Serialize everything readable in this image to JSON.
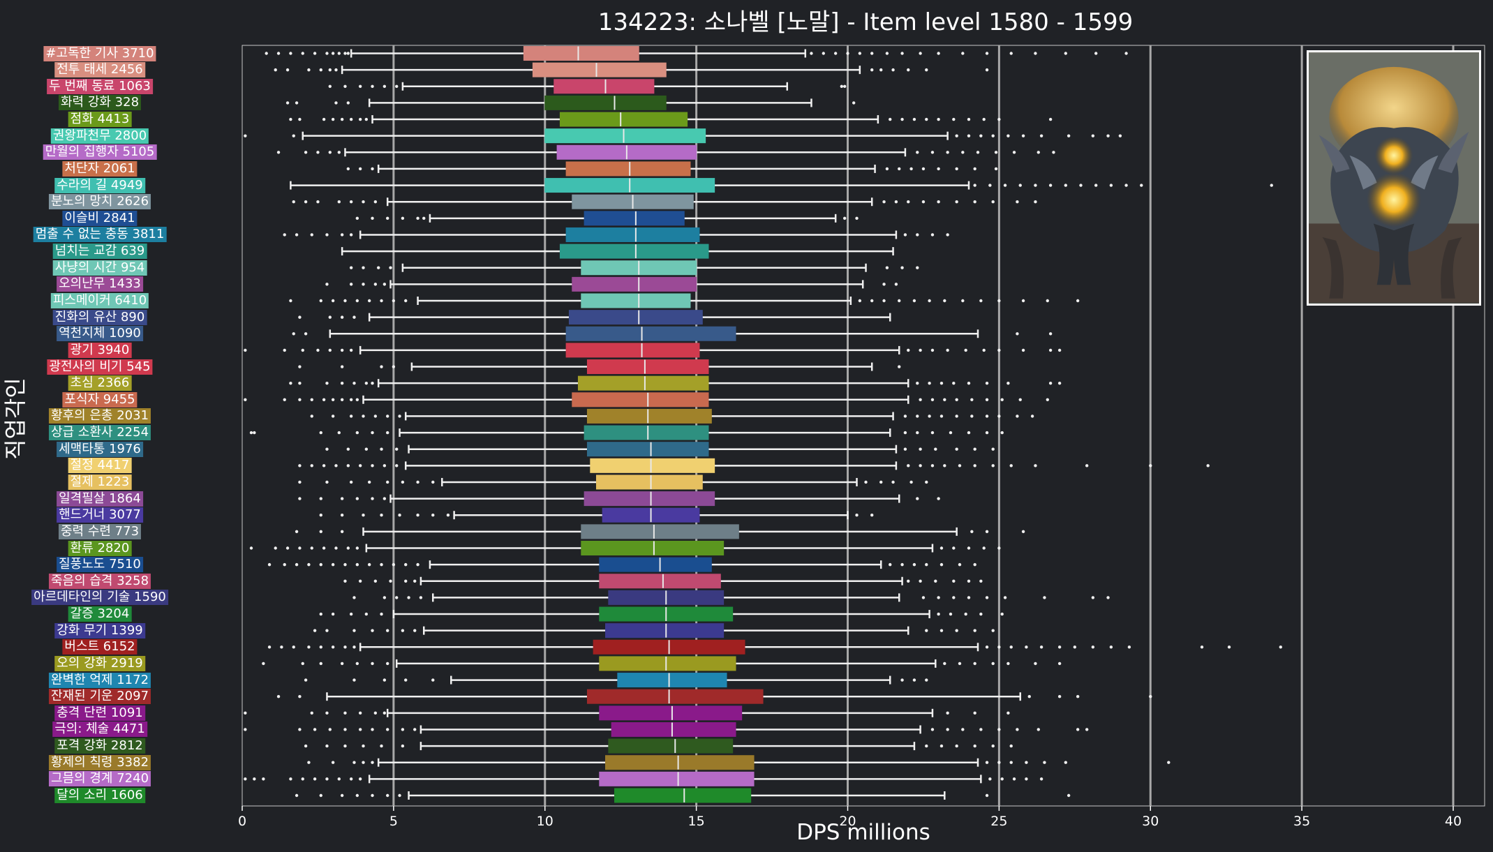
{
  "chart_data": {
    "type": "boxplot",
    "title": "134223: 소나벨 [노말] - Item level 1580 - 1599",
    "xlabel": "DPS millions",
    "ylabel": "직업각인",
    "xlim": [
      0,
      40
    ],
    "x_ticks": [
      0,
      5,
      10,
      15,
      20,
      25,
      30,
      35,
      40
    ],
    "grid": "vertical lines at 5, 10, 15, 20, 25, 30, 35, 40",
    "orientation": "horizontal",
    "background": "#202226",
    "categories": [
      {
        "label": "#고독한 기사 3710",
        "color": "#d4837b",
        "q1": 9.3,
        "median": 11.1,
        "q3": 13.1,
        "wmin": 3.6,
        "wmax": 18.6,
        "outliers": [
          0.8,
          1.2,
          1.6,
          2.0,
          2.4,
          2.8,
          3.0,
          3.2,
          3.4,
          3.5,
          18.8,
          19.2,
          19.6,
          20.0,
          20.4,
          20.8,
          21.3,
          21.8,
          22.4,
          23.0,
          23.8,
          24.6,
          25.4,
          26.2,
          27.2,
          28.2,
          29.2
        ]
      },
      {
        "label": "전투 태세 2456",
        "color": "#d98f80",
        "q1": 9.6,
        "median": 11.7,
        "q3": 14.0,
        "wmin": 3.3,
        "wmax": 20.4,
        "outliers": [
          1.1,
          1.5,
          2.2,
          2.6,
          2.9,
          3.1,
          20.8,
          21.1,
          21.5,
          22.0,
          22.6,
          24.6
        ]
      },
      {
        "label": "두 번째 동료 1063",
        "color": "#c9456b",
        "q1": 10.3,
        "median": 12.0,
        "q3": 13.6,
        "wmin": 5.3,
        "wmax": 18.0,
        "outliers": [
          2.9,
          3.4,
          3.9,
          4.3,
          4.7,
          5.1,
          19.8,
          19.9
        ]
      },
      {
        "label": "화력 강화 328",
        "color": "#2c5a1c",
        "q1": 10.0,
        "median": 12.3,
        "q3": 14.0,
        "wmin": 4.2,
        "wmax": 18.8,
        "outliers": [
          1.5,
          1.8,
          3.1,
          3.5,
          20.2
        ]
      },
      {
        "label": "점화 4413",
        "color": "#6b9a1a",
        "q1": 10.5,
        "median": 12.5,
        "q3": 14.7,
        "wmin": 4.3,
        "wmax": 21.0,
        "outliers": [
          1.6,
          1.9,
          2.7,
          3.0,
          3.3,
          3.6,
          3.9,
          4.1,
          21.4,
          21.8,
          22.2,
          22.6,
          23.0,
          23.5,
          24.0,
          24.5,
          25.0,
          26.7
        ]
      },
      {
        "label": "권왕파천무 2800",
        "color": "#48c9b0",
        "q1": 10.0,
        "median": 12.6,
        "q3": 15.3,
        "wmin": 2.0,
        "wmax": 23.3,
        "outliers": [
          0.1,
          1.7,
          23.6,
          24.0,
          24.4,
          24.8,
          25.3,
          25.8,
          26.4,
          27.3,
          28.1,
          28.6,
          29.0
        ]
      },
      {
        "label": "만월의 집행자 5105",
        "color": "#b56bc7",
        "q1": 10.4,
        "median": 12.7,
        "q3": 15.0,
        "wmin": 3.4,
        "wmax": 21.9,
        "outliers": [
          1.2,
          2.1,
          2.5,
          2.9,
          3.2,
          22.3,
          22.8,
          23.3,
          23.8,
          24.3,
          24.9,
          25.5,
          26.3,
          26.8
        ]
      },
      {
        "label": "처단자 2061",
        "color": "#c8704a",
        "q1": 10.7,
        "median": 12.8,
        "q3": 14.8,
        "wmin": 4.5,
        "wmax": 20.9,
        "outliers": [
          3.5,
          3.9,
          4.3,
          21.3,
          21.7,
          22.1,
          22.5,
          23.0,
          23.6,
          24.2,
          24.9
        ]
      },
      {
        "label": "수라의 길 4949",
        "color": "#40bfb0",
        "q1": 10.0,
        "median": 12.8,
        "q3": 15.6,
        "wmin": 1.6,
        "wmax": 24.0,
        "outliers": [
          24.2,
          24.7,
          25.2,
          25.7,
          26.2,
          26.7,
          27.2,
          27.7,
          28.2,
          28.7,
          29.2,
          29.7,
          34.0
        ]
      },
      {
        "label": "분노의 망치 2626",
        "color": "#7f959f",
        "q1": 10.9,
        "median": 12.9,
        "q3": 14.9,
        "wmin": 4.8,
        "wmax": 20.8,
        "outliers": [
          1.7,
          2.1,
          2.5,
          3.2,
          3.6,
          4.0,
          4.4,
          21.2,
          21.6,
          22.0,
          22.5,
          23.0,
          23.6,
          24.2,
          24.8,
          25.6,
          26.2
        ]
      },
      {
        "label": "이슬비 2841",
        "color": "#1f4e93",
        "q1": 11.3,
        "median": 13.0,
        "q3": 14.6,
        "wmin": 6.2,
        "wmax": 19.6,
        "outliers": [
          3.8,
          4.3,
          4.8,
          5.3,
          5.8,
          6.0,
          19.9,
          20.3
        ]
      },
      {
        "label": "멈출 수 없는 충동 3811",
        "color": "#1d7fa0",
        "q1": 10.7,
        "median": 13.0,
        "q3": 15.1,
        "wmin": 3.9,
        "wmax": 21.6,
        "outliers": [
          1.4,
          1.8,
          2.3,
          2.8,
          3.3,
          3.6,
          21.9,
          22.3,
          22.8,
          23.3
        ]
      },
      {
        "label": "넘치는 교감 639",
        "color": "#2a9a8a",
        "q1": 10.5,
        "median": 13.0,
        "q3": 15.4,
        "wmin": 3.3,
        "wmax": 21.5,
        "outliers": []
      },
      {
        "label": "사냥의 시간 954",
        "color": "#6fc7b5",
        "q1": 11.2,
        "median": 13.1,
        "q3": 15.0,
        "wmin": 5.3,
        "wmax": 20.6,
        "outliers": [
          3.6,
          4.0,
          4.5,
          4.9,
          21.3,
          21.8,
          22.3
        ]
      },
      {
        "label": "오의난무 1433",
        "color": "#9b4a96",
        "q1": 10.9,
        "median": 13.1,
        "q3": 15.0,
        "wmin": 4.9,
        "wmax": 20.5,
        "outliers": [
          2.8,
          3.6,
          4.0,
          4.4,
          4.7,
          21.2,
          21.6
        ]
      },
      {
        "label": "피스메이커 6410",
        "color": "#6fc7b5",
        "q1": 11.2,
        "median": 13.1,
        "q3": 14.8,
        "wmin": 5.8,
        "wmax": 20.1,
        "outliers": [
          1.6,
          2.6,
          3.0,
          3.4,
          3.8,
          4.2,
          4.6,
          5.0,
          5.4,
          20.4,
          20.8,
          21.2,
          21.7,
          22.2,
          22.7,
          23.2,
          23.8,
          24.4,
          25.0,
          25.8,
          26.6,
          27.6
        ]
      },
      {
        "label": "진화의 유산 890",
        "color": "#3a4a8a",
        "q1": 10.8,
        "median": 13.1,
        "q3": 15.2,
        "wmin": 4.2,
        "wmax": 21.4,
        "outliers": [
          1.9,
          2.9,
          3.3,
          3.7
        ]
      },
      {
        "label": "역천지체 1090",
        "color": "#385a8a",
        "q1": 10.7,
        "median": 13.2,
        "q3": 16.3,
        "wmin": 2.9,
        "wmax": 24.3,
        "outliers": [
          1.7,
          2.1,
          25.6,
          26.7
        ]
      },
      {
        "label": "광기 3940",
        "color": "#d03a4e",
        "q1": 10.7,
        "median": 13.2,
        "q3": 15.1,
        "wmin": 3.9,
        "wmax": 21.7,
        "outliers": [
          0.1,
          1.4,
          2.0,
          2.5,
          2.9,
          3.3,
          3.6,
          22.0,
          22.4,
          22.8,
          23.3,
          23.9,
          24.5,
          25.0,
          25.8,
          26.7,
          27.0
        ]
      },
      {
        "label": "광전사의 비기 545",
        "color": "#d03a4e",
        "q1": 11.4,
        "median": 13.3,
        "q3": 15.4,
        "wmin": 5.6,
        "wmax": 20.8,
        "outliers": [
          1.9,
          3.3,
          4.6,
          5.0,
          21.7
        ]
      },
      {
        "label": "초심 2366",
        "color": "#a4a028",
        "q1": 11.1,
        "median": 13.3,
        "q3": 15.4,
        "wmin": 4.5,
        "wmax": 22.0,
        "outliers": [
          1.6,
          1.9,
          2.8,
          3.3,
          3.7,
          4.1,
          4.3,
          22.3,
          22.7,
          23.1,
          23.5,
          24.0,
          24.6,
          25.3,
          26.7,
          27.0
        ]
      },
      {
        "label": "포식자 9455",
        "color": "#c96a4f",
        "q1": 10.9,
        "median": 13.4,
        "q3": 15.4,
        "wmin": 4.0,
        "wmax": 22.0,
        "outliers": [
          0.1,
          1.4,
          1.9,
          2.3,
          2.7,
          3.0,
          3.3,
          3.6,
          3.8,
          22.4,
          22.8,
          23.2,
          23.6,
          24.1,
          24.6,
          25.1,
          25.7,
          26.6
        ]
      },
      {
        "label": "황후의 은총 2031",
        "color": "#a0822a",
        "q1": 11.4,
        "median": 13.4,
        "q3": 15.5,
        "wmin": 5.4,
        "wmax": 21.5,
        "outliers": [
          2.3,
          3.0,
          3.6,
          4.0,
          4.4,
          4.8,
          5.2,
          21.9,
          22.3,
          22.7,
          23.1,
          23.6,
          24.1,
          24.6,
          25.0,
          25.6,
          26.1
        ]
      },
      {
        "label": "상급 소환사 2254",
        "color": "#2e9080",
        "q1": 11.3,
        "median": 13.4,
        "q3": 15.4,
        "wmin": 5.2,
        "wmax": 21.4,
        "outliers": [
          0.3,
          0.4,
          2.6,
          3.2,
          3.8,
          4.3,
          4.8,
          21.9,
          22.3,
          22.8,
          23.4,
          24.0,
          24.6,
          25.1
        ]
      },
      {
        "label": "세맥타통 1976",
        "color": "#2f6a8a",
        "q1": 11.4,
        "median": 13.5,
        "q3": 15.4,
        "wmin": 5.5,
        "wmax": 21.6,
        "outliers": [
          2.8,
          3.5,
          4.1,
          4.6,
          5.1,
          21.9,
          22.4,
          22.9,
          23.6,
          24.2,
          24.8
        ]
      },
      {
        "label": "절정 4417",
        "color": "#f0d070",
        "q1": 11.5,
        "median": 13.5,
        "q3": 15.6,
        "wmin": 5.4,
        "wmax": 21.6,
        "outliers": [
          1.9,
          2.3,
          2.7,
          3.1,
          3.5,
          3.9,
          4.3,
          4.7,
          5.1,
          22.0,
          22.4,
          22.8,
          23.2,
          23.7,
          24.2,
          24.8,
          25.4,
          26.2,
          27.9,
          30.0,
          31.9
        ]
      },
      {
        "label": "절제 1223",
        "color": "#e6c060",
        "q1": 11.7,
        "median": 13.5,
        "q3": 15.2,
        "wmin": 6.6,
        "wmax": 20.3,
        "outliers": [
          1.9,
          2.8,
          3.6,
          4.2,
          4.8,
          5.3,
          5.8,
          6.3,
          20.6,
          21.1,
          21.5,
          22.1,
          22.6
        ]
      },
      {
        "label": "일격필살 1864",
        "color": "#8c4a96",
        "q1": 11.3,
        "median": 13.5,
        "q3": 15.6,
        "wmin": 4.9,
        "wmax": 21.7,
        "outliers": [
          1.9,
          2.6,
          3.3,
          3.8,
          4.3,
          4.7,
          22.3,
          23.0
        ]
      },
      {
        "label": "핸드거너 3077",
        "color": "#4a3aa0",
        "q1": 11.9,
        "median": 13.5,
        "q3": 15.1,
        "wmin": 7.0,
        "wmax": 20.0,
        "outliers": [
          2.6,
          3.3,
          4.0,
          4.6,
          5.2,
          5.8,
          6.3,
          6.8,
          20.3,
          20.8
        ]
      },
      {
        "label": "중력 수련 773",
        "color": "#6e7f88",
        "q1": 11.2,
        "median": 13.6,
        "q3": 16.4,
        "wmin": 4.0,
        "wmax": 23.6,
        "outliers": [
          1.8,
          2.6,
          3.3,
          24.1,
          24.6,
          25.8
        ]
      },
      {
        "label": "환류 2820",
        "color": "#5b961f",
        "q1": 11.2,
        "median": 13.6,
        "q3": 15.9,
        "wmin": 4.1,
        "wmax": 22.8,
        "outliers": [
          0.3,
          1.1,
          1.5,
          1.9,
          2.3,
          2.7,
          3.1,
          3.5,
          3.8,
          23.1,
          23.5,
          24.0,
          24.5,
          25.0
        ]
      },
      {
        "label": "질풍노도 7510",
        "color": "#1a4e90",
        "q1": 11.8,
        "median": 13.8,
        "q3": 15.5,
        "wmin": 6.2,
        "wmax": 21.1,
        "outliers": [
          0.9,
          1.4,
          1.8,
          2.2,
          2.6,
          3.0,
          3.4,
          3.8,
          4.2,
          4.6,
          5.0,
          5.4,
          5.8,
          21.4,
          21.8,
          22.2,
          22.6,
          23.1,
          23.7,
          24.2
        ]
      },
      {
        "label": "죽음의 습격 3258",
        "color": "#c04a70",
        "q1": 11.8,
        "median": 13.9,
        "q3": 15.8,
        "wmin": 5.9,
        "wmax": 21.8,
        "outliers": [
          3.4,
          3.9,
          4.4,
          4.9,
          5.4,
          5.7,
          22.0,
          22.4,
          22.9,
          23.5,
          24.0,
          24.4
        ]
      },
      {
        "label": "아르데타인의 기술 1590",
        "color": "#3a3a80",
        "q1": 12.1,
        "median": 14.0,
        "q3": 15.9,
        "wmin": 6.3,
        "wmax": 21.7,
        "outliers": [
          3.7,
          4.7,
          5.1,
          5.5,
          5.9,
          22.5,
          23.0,
          23.5,
          24.0,
          24.6,
          25.2,
          26.5,
          28.1,
          28.6
        ]
      },
      {
        "label": "갈증 3204",
        "color": "#1f8a3a",
        "q1": 11.8,
        "median": 14.0,
        "q3": 16.2,
        "wmin": 5.0,
        "wmax": 22.7,
        "outliers": [
          2.6,
          3.0,
          3.6,
          4.1,
          4.6,
          23.0,
          23.4,
          23.9,
          24.4,
          25.1
        ]
      },
      {
        "label": "강화 무기 1399",
        "color": "#3c3a90",
        "q1": 12.0,
        "median": 14.0,
        "q3": 15.9,
        "wmin": 6.0,
        "wmax": 22.0,
        "outliers": [
          2.4,
          2.8,
          3.7,
          4.3,
          4.8,
          5.3,
          5.7,
          22.6,
          23.1,
          23.6,
          24.2,
          24.8
        ]
      },
      {
        "label": "버스트 6152",
        "color": "#a02020",
        "q1": 11.6,
        "median": 14.1,
        "q3": 16.6,
        "wmin": 3.9,
        "wmax": 24.3,
        "outliers": [
          0.9,
          1.3,
          1.7,
          2.2,
          2.6,
          3.0,
          3.4,
          3.7,
          24.6,
          25.0,
          25.4,
          25.9,
          26.4,
          27.0,
          27.5,
          28.1,
          28.7,
          29.3,
          31.7,
          32.6,
          34.3
        ]
      },
      {
        "label": "오의 강화 2919",
        "color": "#9a9a20",
        "q1": 11.8,
        "median": 14.0,
        "q3": 16.3,
        "wmin": 5.1,
        "wmax": 22.9,
        "outliers": [
          0.7,
          2.0,
          2.6,
          3.3,
          3.8,
          4.3,
          4.8,
          23.2,
          23.7,
          24.2,
          24.8,
          25.3,
          26.2,
          27.0
        ]
      },
      {
        "label": "완벽한 억제 1172",
        "color": "#1f86b0",
        "q1": 12.4,
        "median": 14.1,
        "q3": 16.0,
        "wmin": 6.9,
        "wmax": 21.4,
        "outliers": [
          2.1,
          3.7,
          4.7,
          5.4,
          6.3,
          21.8,
          22.2,
          22.6
        ]
      },
      {
        "label": "잔재된 기운 2097",
        "color": "#a02a2a",
        "q1": 11.4,
        "median": 14.1,
        "q3": 17.2,
        "wmin": 2.8,
        "wmax": 25.7,
        "outliers": [
          1.2,
          1.9,
          26.0,
          27.0,
          27.6,
          30.0
        ]
      },
      {
        "label": "충격 단련 1091",
        "color": "#8a1a8a",
        "q1": 11.8,
        "median": 14.2,
        "q3": 16.5,
        "wmin": 4.8,
        "wmax": 22.8,
        "outliers": [
          0.1,
          2.3,
          2.8,
          3.4,
          3.9,
          4.4,
          4.7,
          23.3,
          24.2,
          25.3
        ]
      },
      {
        "label": "극의: 체술 4471",
        "color": "#8a1a8a",
        "q1": 12.2,
        "median": 14.2,
        "q3": 16.3,
        "wmin": 5.9,
        "wmax": 22.4,
        "outliers": [
          0.1,
          1.9,
          2.4,
          2.9,
          3.4,
          3.9,
          4.3,
          4.8,
          5.3,
          5.7,
          22.8,
          23.3,
          23.8,
          24.4,
          25.0,
          25.6,
          26.3,
          27.6,
          27.9
        ]
      },
      {
        "label": "포격 강화 2812",
        "color": "#2f5a1f",
        "q1": 12.1,
        "median": 14.3,
        "q3": 16.2,
        "wmin": 5.9,
        "wmax": 22.2,
        "outliers": [
          2.1,
          2.8,
          3.4,
          4.0,
          4.6,
          5.3,
          22.6,
          23.1,
          23.6,
          24.2,
          24.8,
          25.4
        ]
      },
      {
        "label": "황제의 칙령 3382",
        "color": "#9a7a2a",
        "q1": 12.0,
        "median": 14.4,
        "q3": 16.9,
        "wmin": 4.5,
        "wmax": 24.3,
        "outliers": [
          2.2,
          3.0,
          3.7,
          4.0,
          4.3,
          24.6,
          25.0,
          25.4,
          25.9,
          26.5,
          27.2,
          30.6
        ]
      },
      {
        "label": "그믐의 경계 7240",
        "color": "#b56bc7",
        "q1": 11.8,
        "median": 14.4,
        "q3": 16.9,
        "wmin": 4.2,
        "wmax": 24.4,
        "outliers": [
          0.1,
          0.4,
          0.7,
          1.6,
          2.0,
          2.4,
          2.8,
          3.2,
          3.6,
          3.9,
          24.7,
          25.1,
          25.5,
          25.9,
          26.4
        ]
      },
      {
        "label": "달의 소리 1606",
        "color": "#1f8a2a",
        "q1": 12.3,
        "median": 14.6,
        "q3": 16.8,
        "wmin": 5.5,
        "wmax": 23.2,
        "outliers": [
          1.8,
          2.6,
          3.3,
          3.8,
          4.3,
          4.8,
          5.2,
          24.6,
          27.3
        ]
      }
    ]
  }
}
